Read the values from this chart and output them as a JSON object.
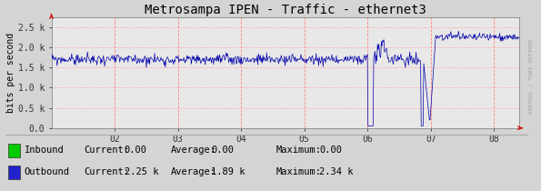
{
  "title": "Metrosampa IPEN - Traffic - ethernet3",
  "ylabel": "bits per second",
  "ytick_labels": [
    "0.0",
    "0.5 k",
    "1.0 k",
    "1.5 k",
    "2.0 k",
    "2.5 k"
  ],
  "ytick_values": [
    0,
    500,
    1000,
    1500,
    2000,
    2500
  ],
  "xtick_labels": [
    "02",
    "03",
    "04",
    "05",
    "06",
    "07",
    "08"
  ],
  "xtick_positions": [
    1,
    2,
    3,
    4,
    5,
    6,
    7
  ],
  "xlim": [
    0,
    7.4
  ],
  "ylim": [
    0,
    2750
  ],
  "outer_bg": "#d4d4d4",
  "plot_bg_color": "#e8e8e8",
  "grid_color_v": "#ff8080",
  "grid_color_h": "#ffaaaa",
  "line_color": "#0000aa",
  "title_fontsize": 10,
  "axis_fontsize": 7,
  "legend_fontsize": 7.5,
  "inbound_color": "#00cc00",
  "outbound_color": "#2222cc",
  "legend": [
    {
      "label": "Inbound",
      "current": "0.00",
      "average": "0.00",
      "maximum": "0.00"
    },
    {
      "label": "Outbound",
      "current": "2.25 k",
      "average": "1.89 k",
      "maximum": "2.34 k"
    }
  ],
  "rrdtool_text": "RRDTOOL / TOBI OETIKER",
  "arrow_color": "#cc0000"
}
